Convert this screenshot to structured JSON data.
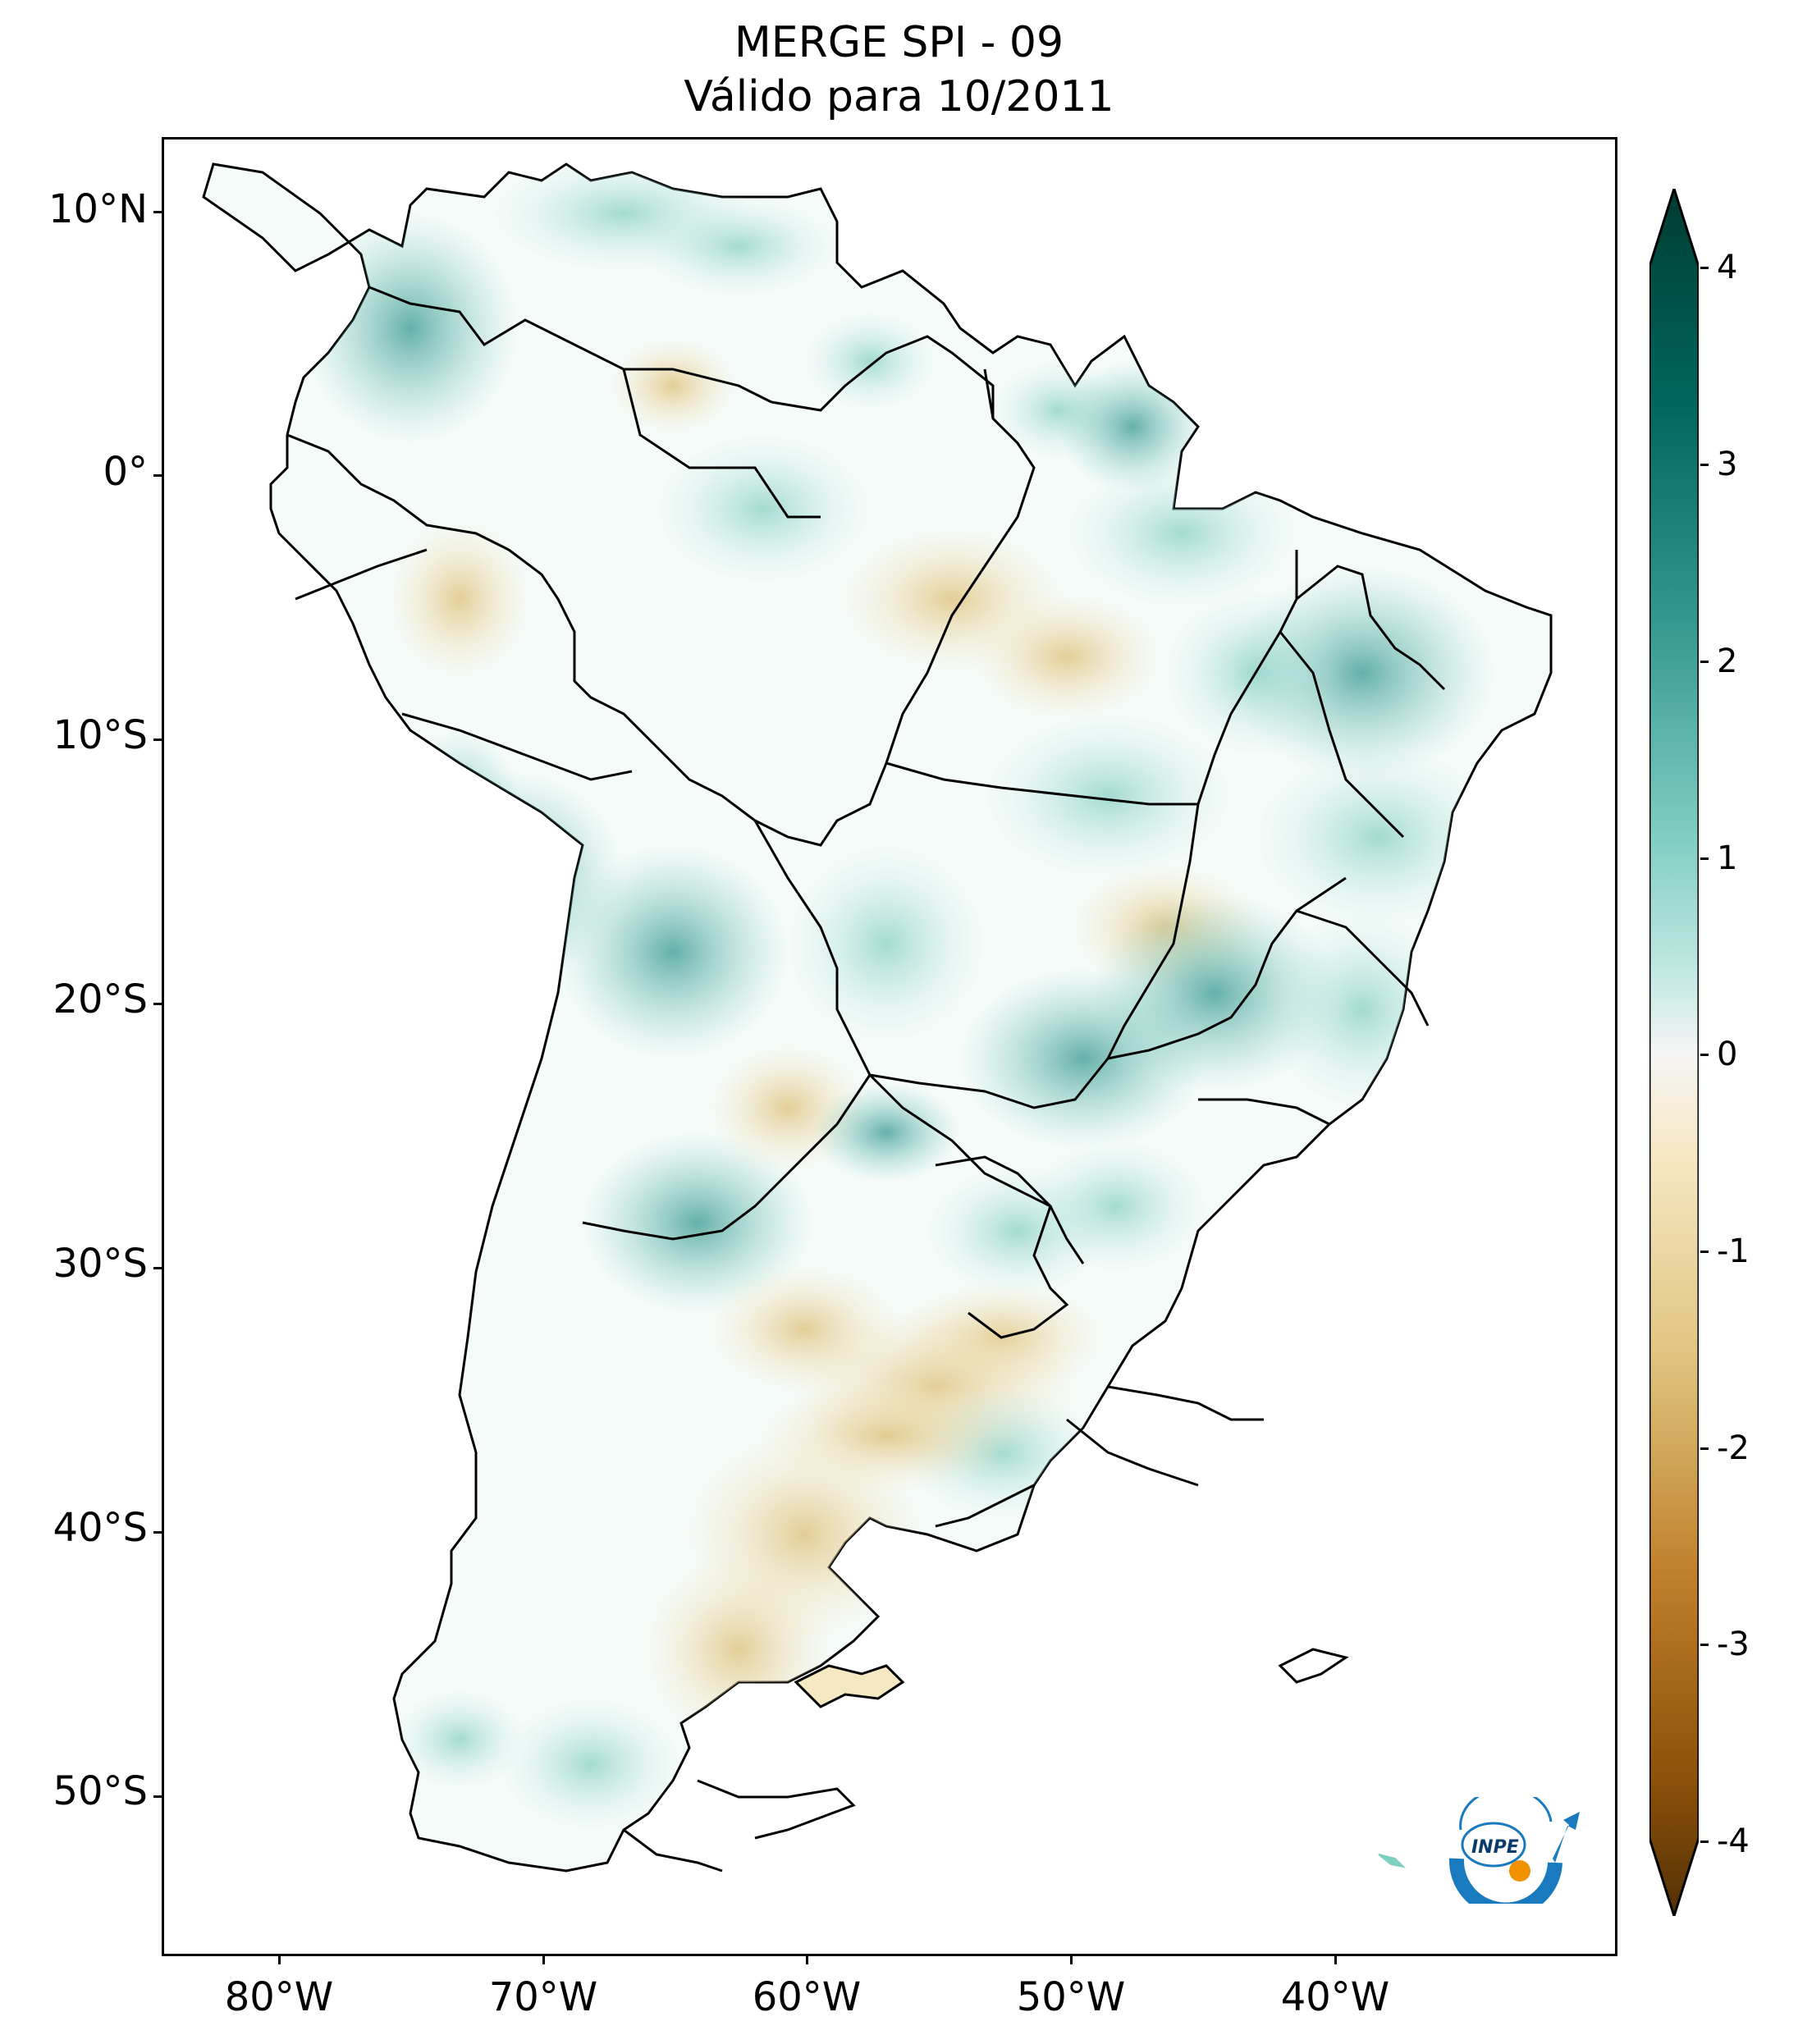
{
  "header": {
    "title_line1": "MERGE   SPI - 09",
    "title_line2": "Válido para 10/2011"
  },
  "axes": {
    "lat_labels": [
      "10°N",
      "0°",
      "10°S",
      "20°S",
      "30°S",
      "40°S",
      "50°S"
    ],
    "lon_labels": [
      "80°W",
      "70°W",
      "60°W",
      "50°W",
      "40°W"
    ]
  },
  "colorbar": {
    "colormap": "BrBG",
    "ticks": [
      "4",
      "3",
      "2",
      "1",
      "0",
      "-1",
      "-2",
      "-3",
      "-4"
    ],
    "colors": [
      "#003c30",
      "#01665e",
      "#35978f",
      "#80cdc1",
      "#c7eae5",
      "#f5f5f5",
      "#f6e8c3",
      "#dfc27d",
      "#bf812d",
      "#8c510a",
      "#543005"
    ]
  },
  "logo": {
    "text": "INPE"
  }
}
